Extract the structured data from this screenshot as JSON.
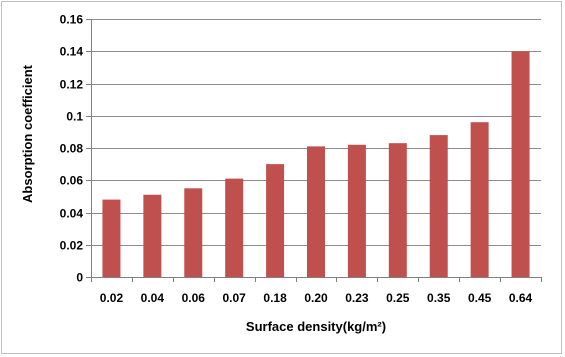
{
  "chart_data": {
    "type": "bar",
    "title": "",
    "xlabel": "Surface density(kg/m²)",
    "ylabel": "Absorption coefficient",
    "categories": [
      "0.02",
      "0.04",
      "0.06",
      "0.07",
      "0.18",
      "0.20",
      "0.23",
      "0.25",
      "0.35",
      "0.45",
      "0.64"
    ],
    "values": [
      0.048,
      0.051,
      0.055,
      0.061,
      0.07,
      0.081,
      0.082,
      0.083,
      0.088,
      0.096,
      0.14
    ],
    "ylim": [
      0,
      0.16
    ],
    "yticks": [
      "0",
      "0.02",
      "0.04",
      "0.06",
      "0.08",
      "0.1",
      "0.12",
      "0.14",
      "0.16"
    ],
    "grid": true,
    "legend": "none",
    "colors": {
      "bar": "#c0504d",
      "grid": "#8c8c8c",
      "axis": "#7f7f7f"
    }
  }
}
